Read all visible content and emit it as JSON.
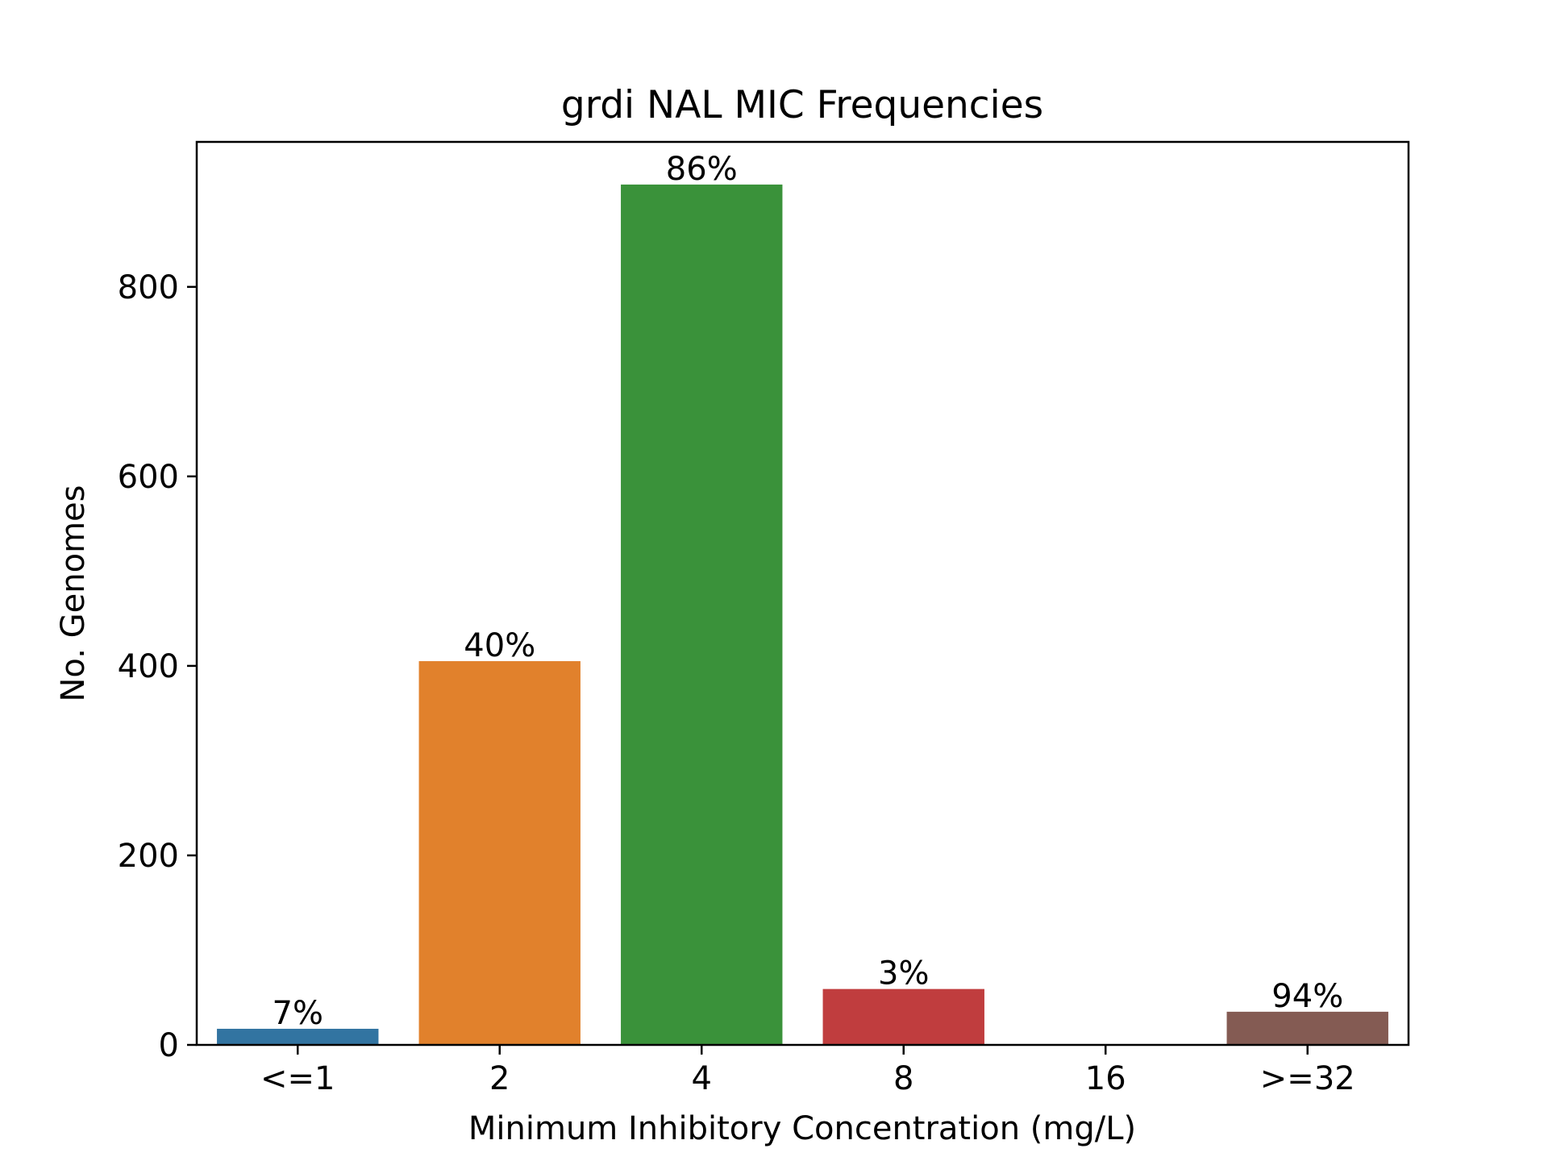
{
  "chart_data": {
    "type": "bar",
    "title": "grdi NAL MIC Frequencies",
    "xlabel": "Minimum Inhibitory Concentration (mg/L)",
    "ylabel": "No. Genomes",
    "categories": [
      "<=1",
      "2",
      "4",
      "8",
      "16",
      ">=32"
    ],
    "values": [
      17,
      405,
      908,
      59,
      0,
      35
    ],
    "data_labels": [
      "7%",
      "40%",
      "86%",
      "3%",
      "",
      "94%"
    ],
    "colors": [
      "#3274a1",
      "#e1812c",
      "#3a923a",
      "#c03d3e",
      "#9372b2",
      "#845b53"
    ],
    "ylim": [
      0,
      953
    ],
    "yticks": [
      0,
      200,
      400,
      600,
      800
    ],
    "grid": false,
    "legend": "none"
  }
}
